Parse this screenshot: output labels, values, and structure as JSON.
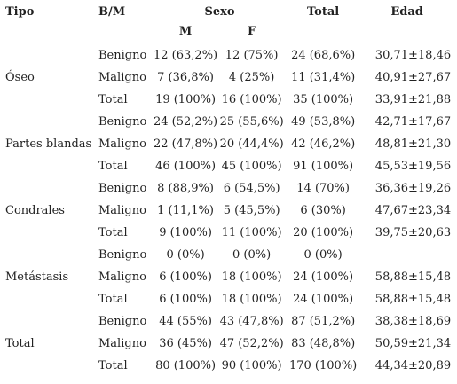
{
  "header": {
    "tipo": "Tipo",
    "bm": "B/M",
    "sexo": "Sexo",
    "m": "M",
    "f": "F",
    "total": "Total",
    "edad": "Edad"
  },
  "rows": [
    {
      "tipo": "",
      "bm": "Benigno",
      "m": "12 (63,2%)",
      "f": "12 (75%)",
      "total": "24 (68,6%)",
      "edad": "30,71±18,46"
    },
    {
      "tipo": "Óseo",
      "bm": "Maligno",
      "m": "7 (36,8%)",
      "f": "4 (25%)",
      "total": "11 (31,4%)",
      "edad": "40,91±27,67"
    },
    {
      "tipo": "",
      "bm": "Total",
      "m": "19 (100%)",
      "f": "16 (100%)",
      "total": "35 (100%)",
      "edad": "33,91±21,88"
    },
    {
      "tipo": "",
      "bm": "Benigno",
      "m": "24 (52,2%)",
      "f": "25 (55,6%)",
      "total": "49 (53,8%)",
      "edad": "42,71±17,67"
    },
    {
      "tipo": "Partes blandas",
      "bm": "Maligno",
      "m": "22 (47,8%)",
      "f": "20 (44,4%)",
      "total": "42 (46,2%)",
      "edad": "48,81±21,30"
    },
    {
      "tipo": "",
      "bm": "Total",
      "m": "46 (100%)",
      "f": "45 (100%)",
      "total": "91 (100%)",
      "edad": "45,53±19,56"
    },
    {
      "tipo": "",
      "bm": "Benigno",
      "m": "8 (88,9%)",
      "f": "6 (54,5%)",
      "total": "14 (70%)",
      "edad": "36,36±19,26"
    },
    {
      "tipo": "Condrales",
      "bm": "Maligno",
      "m": "1 (11,1%)",
      "f": "5 (45,5%)",
      "total": "6 (30%)",
      "edad": "47,67±23,34"
    },
    {
      "tipo": "",
      "bm": "Total",
      "m": "9 (100%)",
      "f": "11 (100%)",
      "total": "20 (100%)",
      "edad": "39,75±20,63"
    },
    {
      "tipo": "",
      "bm": "Benigno",
      "m": "0 (0%)",
      "f": "0 (0%)",
      "total": "0 (0%)",
      "edad": "–"
    },
    {
      "tipo": "Metástasis",
      "bm": "Maligno",
      "m": "6 (100%)",
      "f": "18 (100%)",
      "total": "24 (100%)",
      "edad": "58,88±15,48"
    },
    {
      "tipo": "",
      "bm": "Total",
      "m": "6 (100%)",
      "f": "18 (100%)",
      "total": "24 (100%)",
      "edad": "58,88±15,48"
    },
    {
      "tipo": "",
      "bm": "Benigno",
      "m": "44 (55%)",
      "f": "43 (47,8%)",
      "total": "87 (51,2%)",
      "edad": "38,38±18,69"
    },
    {
      "tipo": "Total",
      "bm": "Maligno",
      "m": "36 (45%)",
      "f": "47 (52,2%)",
      "total": "83 (48,8%)",
      "edad": "50,59±21,34"
    },
    {
      "tipo": "",
      "bm": "Total",
      "m": "80 (100%)",
      "f": "90 (100%)",
      "total": "170 (100%)",
      "edad": "44,34±20,89"
    }
  ]
}
